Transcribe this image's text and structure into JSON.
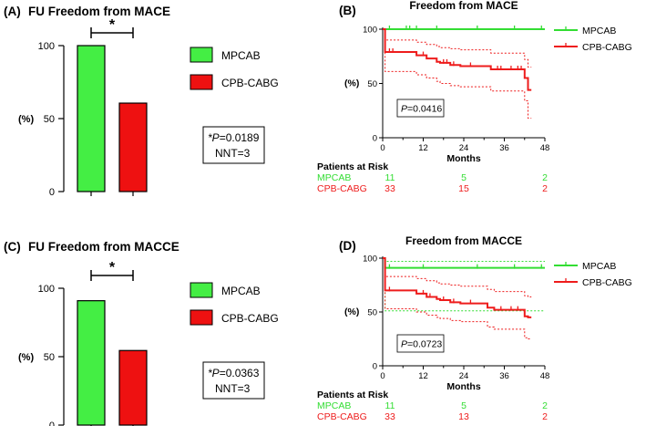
{
  "colors": {
    "mpcab": "#33dd33",
    "cpb": "#ee1c1c",
    "bar_mpcab": "#44ee44",
    "bar_cpb": "#ee1111",
    "axis": "#000000"
  },
  "chart_data": [
    {
      "id": "A",
      "type": "bar",
      "panel_label": "(A)",
      "title": "FU Freedom from MACE",
      "ylabel": "(%)",
      "ylim": [
        0,
        100
      ],
      "yticks": [
        0,
        50,
        100
      ],
      "categories": [
        "MPCAB",
        "CPB-CABG"
      ],
      "values": [
        100,
        60.6
      ],
      "legend": [
        "MPCAB",
        "CPB-CABG"
      ],
      "significance": "*",
      "stats": {
        "p_label": "*P",
        "p_value": "=0.0189",
        "nnt": "NNT=3"
      }
    },
    {
      "id": "B",
      "type": "line",
      "panel_label": "(B)",
      "title": "Freedom from MACE",
      "xlabel": "Months",
      "ylabel": "(%)",
      "xlim": [
        0,
        48
      ],
      "ylim": [
        0,
        100
      ],
      "xticks": [
        0,
        12,
        24,
        36,
        48
      ],
      "yticks": [
        0,
        50,
        100
      ],
      "pvalue": {
        "label": "P",
        "value": "=0.0416"
      },
      "series": [
        {
          "name": "MPCAB",
          "x": [
            0,
            48
          ],
          "y": [
            100,
            100
          ],
          "censor": [
            2,
            7,
            8,
            10,
            16,
            28,
            39,
            47
          ]
        },
        {
          "name": "CPB-CABG",
          "x": [
            0,
            0.7,
            0.7,
            10,
            10,
            13,
            13,
            16,
            16,
            17,
            17,
            20,
            20,
            23,
            23,
            32,
            32,
            42,
            42,
            43,
            43,
            44
          ],
          "y": [
            100,
            100,
            79,
            79,
            76,
            76,
            73,
            73,
            70,
            70,
            69,
            69,
            67,
            67,
            66,
            66,
            63,
            63,
            55,
            55,
            44,
            44
          ],
          "censor": [
            2,
            3,
            12,
            18,
            19,
            21,
            26,
            34,
            35,
            38,
            40,
            41
          ]
        },
        {
          "name": "CPB-CABG upper CI",
          "x": [
            0,
            0.7,
            0.7,
            10,
            10,
            13,
            13,
            16,
            16,
            17,
            17,
            20,
            20,
            23,
            23,
            32,
            32,
            42,
            42,
            43,
            43,
            44
          ],
          "y": [
            100,
            100,
            90,
            90,
            88,
            88,
            86,
            86,
            84,
            84,
            83,
            83,
            82,
            82,
            81,
            81,
            78,
            78,
            72,
            72,
            65,
            65
          ]
        },
        {
          "name": "CPB-CABG lower CI",
          "x": [
            0,
            0.7,
            0.7,
            10,
            10,
            13,
            13,
            16,
            16,
            17,
            17,
            20,
            20,
            23,
            23,
            32,
            32,
            42,
            42,
            43,
            43,
            44
          ],
          "y": [
            100,
            100,
            61,
            61,
            58,
            58,
            55,
            55,
            52,
            52,
            50,
            50,
            48,
            48,
            47,
            47,
            43,
            43,
            34,
            34,
            18,
            18
          ]
        }
      ],
      "legend": [
        "MPCAB",
        "CPB-CABG"
      ],
      "risk": {
        "title": "Patients at Risk",
        "rows": [
          {
            "name": "MPCAB",
            "values": [
              "11",
              "5",
              "2"
            ]
          },
          {
            "name": "CPB-CABG",
            "values": [
              "33",
              "15",
              "2"
            ]
          }
        ]
      }
    },
    {
      "id": "C",
      "type": "bar",
      "panel_label": "(C)",
      "title": "FU Freedom from MACCE",
      "ylabel": "(%)",
      "ylim": [
        0,
        100
      ],
      "yticks": [
        0,
        50,
        100
      ],
      "categories": [
        "MPCAB",
        "CPB-CABG"
      ],
      "values": [
        90.9,
        54.5
      ],
      "legend": [
        "MPCAB",
        "CPB-CABG"
      ],
      "significance": "*",
      "stats": {
        "p_label": "*P",
        "p_value": "=0.0363",
        "nnt": "NNT=3"
      }
    },
    {
      "id": "D",
      "type": "line",
      "panel_label": "(D)",
      "title": "Freedom from MACCE",
      "xlabel": "Months",
      "ylabel": "(%)",
      "xlim": [
        0,
        48
      ],
      "ylim": [
        0,
        100
      ],
      "xticks": [
        0,
        12,
        24,
        36,
        48
      ],
      "yticks": [
        0,
        50,
        100
      ],
      "pvalue": {
        "label": "P",
        "value": "=0.0723"
      },
      "series": [
        {
          "name": "MPCAB",
          "x": [
            0,
            0.7,
            0.7,
            48
          ],
          "y": [
            100,
            100,
            91,
            91
          ],
          "censor": [
            2,
            12,
            28,
            39,
            47
          ]
        },
        {
          "name": "MPCAB upper CI",
          "x": [
            0,
            0.7,
            0.7,
            48
          ],
          "y": [
            100,
            100,
            97,
            97
          ]
        },
        {
          "name": "MPCAB lower CI",
          "x": [
            0,
            0.7,
            0.7,
            48
          ],
          "y": [
            100,
            100,
            51,
            51
          ]
        },
        {
          "name": "CPB-CABG",
          "x": [
            0,
            0.7,
            0.7,
            10,
            10,
            13,
            13,
            16,
            16,
            17,
            17,
            20,
            20,
            23,
            23,
            31,
            31,
            33,
            33,
            42,
            42,
            43,
            43,
            44
          ],
          "y": [
            100,
            100,
            70,
            70,
            67,
            67,
            64,
            64,
            62,
            62,
            61,
            61,
            59,
            59,
            58,
            58,
            54,
            54,
            52,
            52,
            46,
            46,
            45,
            45
          ],
          "censor": [
            2,
            12,
            14,
            18,
            21,
            26,
            35,
            38,
            40
          ]
        },
        {
          "name": "CPB-CABG upper CI",
          "x": [
            0,
            0.7,
            0.7,
            10,
            10,
            13,
            13,
            16,
            16,
            17,
            17,
            20,
            20,
            23,
            23,
            31,
            31,
            33,
            33,
            42,
            42,
            43,
            43,
            44
          ],
          "y": [
            100,
            100,
            83,
            83,
            81,
            81,
            79,
            79,
            77,
            77,
            76,
            76,
            75,
            75,
            74,
            74,
            71,
            71,
            69,
            69,
            65,
            65,
            64,
            64
          ]
        },
        {
          "name": "CPB-CABG lower CI",
          "x": [
            0,
            0.7,
            0.7,
            10,
            10,
            13,
            13,
            16,
            16,
            17,
            17,
            20,
            20,
            23,
            23,
            31,
            31,
            33,
            33,
            42,
            42,
            43,
            43,
            44
          ],
          "y": [
            100,
            100,
            53,
            53,
            50,
            50,
            47,
            47,
            45,
            45,
            44,
            44,
            42,
            42,
            41,
            41,
            36,
            36,
            34,
            34,
            26,
            26,
            25,
            25
          ]
        }
      ],
      "legend": [
        "MPCAB",
        "CPB-CABG"
      ],
      "risk": {
        "title": "Patients at Risk",
        "rows": [
          {
            "name": "MPCAB",
            "values": [
              "11",
              "5",
              "2"
            ]
          },
          {
            "name": "CPB-CABG",
            "values": [
              "33",
              "13",
              "2"
            ]
          }
        ]
      }
    }
  ]
}
